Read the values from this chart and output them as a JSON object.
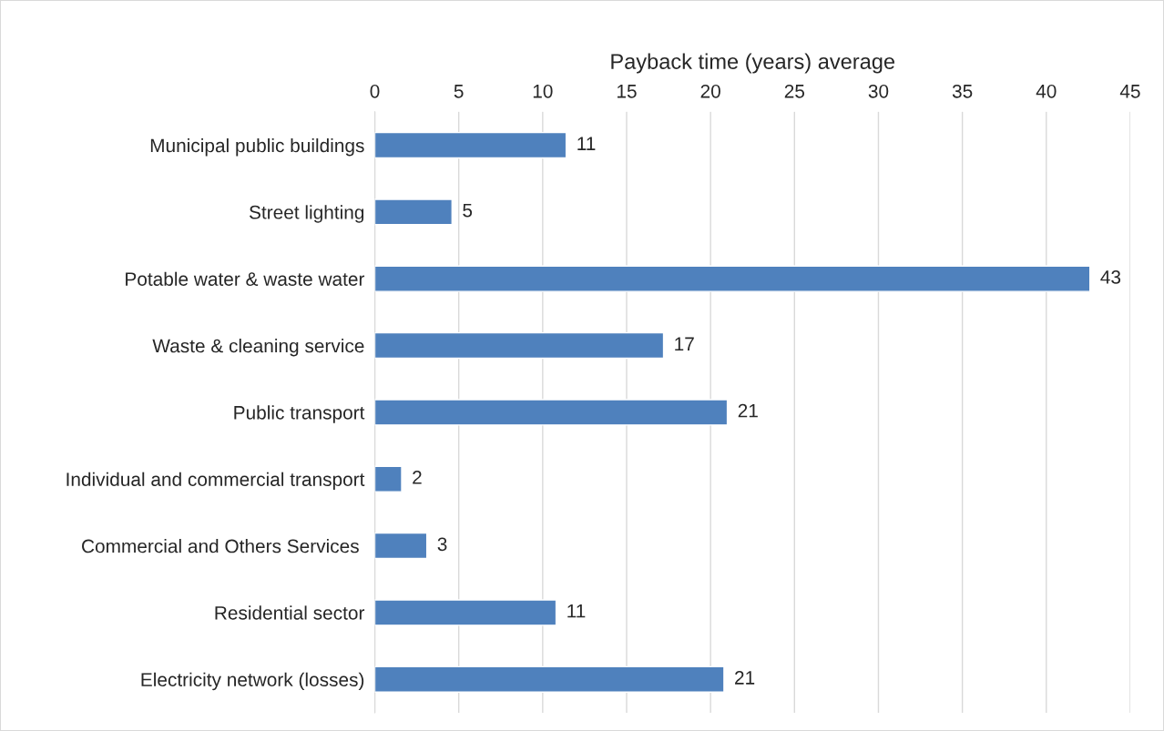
{
  "chart_data": {
    "type": "bar",
    "orientation": "horizontal",
    "xlabel": "Payback time (years) average",
    "categories": [
      "Municipal public buildings",
      "Street lighting",
      "Potable water & waste water",
      "Waste & cleaning service",
      "Public transport",
      "Individual and commercial transport",
      "Commercial and Others Services ",
      "Residential sector",
      "Electricity network (losses)"
    ],
    "values": [
      11.4,
      4.6,
      42.6,
      17.2,
      21.0,
      1.6,
      3.1,
      10.8,
      20.8
    ],
    "value_labels": [
      "11",
      "5",
      "43",
      "17",
      "21",
      "2",
      "3",
      "11",
      "21"
    ],
    "color": "#4f81bd",
    "xlim": [
      0,
      45
    ],
    "xticks": [
      0,
      5,
      10,
      15,
      20,
      25,
      30,
      35,
      40,
      45
    ],
    "grid": "x",
    "legend": false
  }
}
